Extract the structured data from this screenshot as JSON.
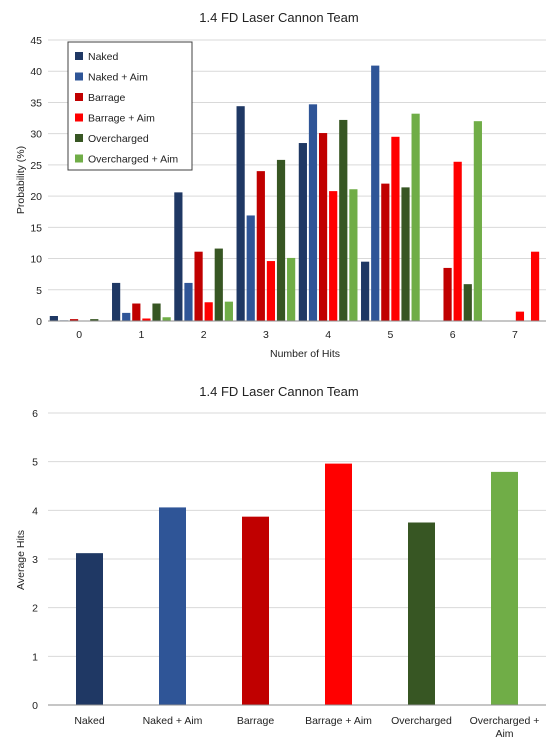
{
  "chart_data": [
    {
      "type": "bar",
      "title": "1.4 FD Laser Cannon Team",
      "xlabel": "Number of Hits",
      "ylabel": "Probability (%)",
      "ylim": [
        0,
        45
      ],
      "yticks": [
        0,
        5,
        10,
        15,
        20,
        25,
        30,
        35,
        40,
        45
      ],
      "grid": true,
      "legend_position": "top-left",
      "categories": [
        "0",
        "1",
        "2",
        "3",
        "4",
        "5",
        "6",
        "7"
      ],
      "series": [
        {
          "name": "Naked",
          "color": "#1f3864",
          "values": [
            0.8,
            6.1,
            20.6,
            34.4,
            28.5,
            9.5,
            null,
            null
          ]
        },
        {
          "name": "Naked + Aim",
          "color": "#2f5597",
          "values": [
            0.1,
            1.3,
            6.1,
            16.9,
            34.7,
            40.9,
            null,
            null
          ]
        },
        {
          "name": "Barrage",
          "color": "#c00000",
          "values": [
            0.3,
            2.8,
            11.1,
            24.0,
            30.1,
            22.0,
            8.5,
            null
          ]
        },
        {
          "name": "Barrage + Aim",
          "color": "#ff0000",
          "values": [
            0.0,
            0.4,
            3.0,
            9.6,
            20.8,
            29.5,
            25.5,
            1.5
          ]
        },
        {
          "name": "Overcharged",
          "color": "#375623",
          "values": [
            0.3,
            2.8,
            11.6,
            25.8,
            32.2,
            21.4,
            5.9,
            null
          ]
        },
        {
          "name": "Overcharged + Aim",
          "color": "#70ad47",
          "values": [
            0.0,
            0.6,
            3.1,
            10.1,
            21.1,
            33.2,
            32.0,
            null
          ]
        }
      ],
      "extra_bars": [
        {
          "category": "7",
          "color": "#ff0000",
          "value": 11.1
        }
      ]
    },
    {
      "type": "bar",
      "title": "1.4 FD Laser Cannon Team",
      "xlabel": "",
      "ylabel": "Average Hits",
      "ylim": [
        0,
        6
      ],
      "yticks": [
        0,
        1,
        2,
        3,
        4,
        5,
        6
      ],
      "grid": true,
      "categories": [
        "Naked",
        "Naked + Aim",
        "Barrage",
        "Barrage + Aim",
        "Overcharged",
        "Overcharged + Aim"
      ],
      "category_lines": [
        [
          "Naked"
        ],
        [
          "Naked + Aim"
        ],
        [
          "Barrage"
        ],
        [
          "Barrage + Aim"
        ],
        [
          "Overcharged"
        ],
        [
          "Overcharged +",
          "Aim"
        ]
      ],
      "colors": [
        "#1f3864",
        "#2f5597",
        "#c00000",
        "#ff0000",
        "#375623",
        "#70ad47"
      ],
      "values": [
        3.12,
        4.06,
        3.87,
        4.96,
        3.75,
        4.79
      ]
    }
  ]
}
